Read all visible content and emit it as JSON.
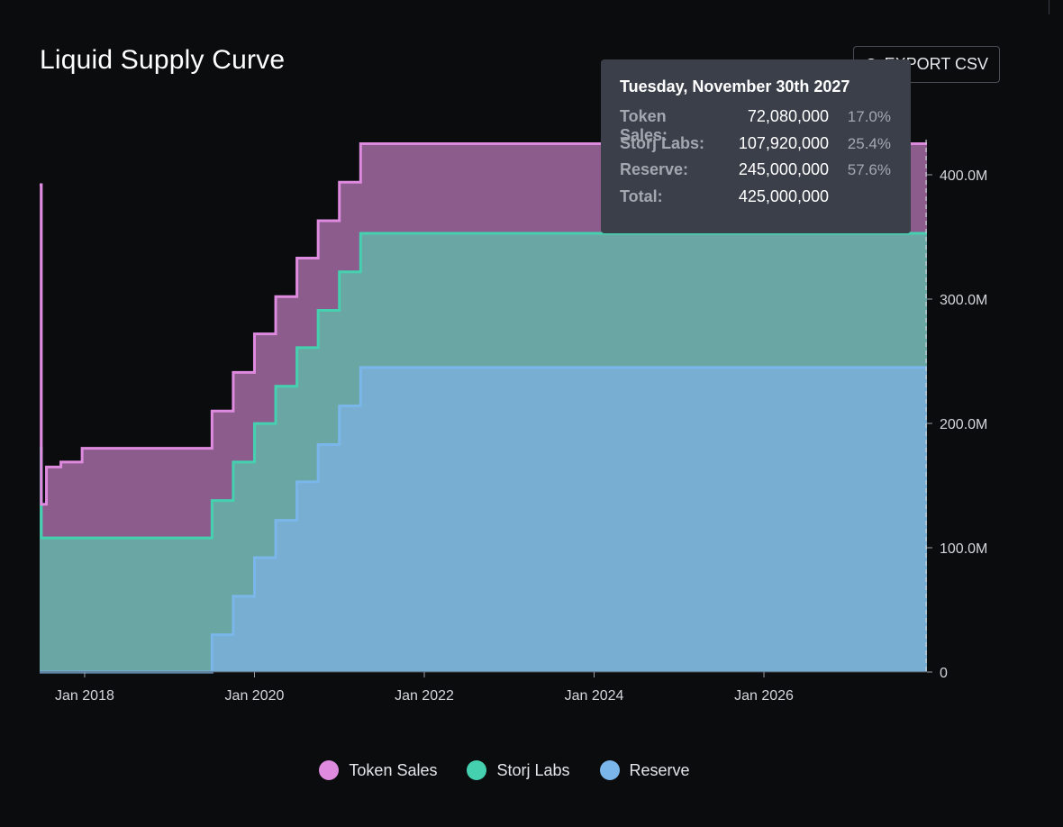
{
  "header": {
    "title": "Liquid Supply Curve",
    "export_label": "EXPORT CSV"
  },
  "tooltip": {
    "date": "Tuesday, November 30th 2027",
    "rows": [
      {
        "label": "Token Sales:",
        "value": "72,080,000",
        "pct": "17.0%"
      },
      {
        "label": "Storj Labs:",
        "value": "107,920,000",
        "pct": "25.4%"
      },
      {
        "label": "Reserve:",
        "value": "245,000,000",
        "pct": "57.6%"
      },
      {
        "label": "Total:",
        "value": "425,000,000",
        "pct": ""
      }
    ]
  },
  "legend": [
    {
      "label": "Token Sales",
      "color": "#de8adf"
    },
    {
      "label": "Storj Labs",
      "color": "#45d1b0"
    },
    {
      "label": "Reserve",
      "color": "#7ab6ea"
    }
  ],
  "chart_data": {
    "type": "area",
    "stacked": true,
    "step": true,
    "title": "Liquid Supply Curve",
    "xlabel": "",
    "ylabel": "",
    "x_domain": [
      2017.47,
      2027.92
    ],
    "ylim": [
      0,
      425000000
    ],
    "y_axis_side": "right",
    "y_ticks": [
      {
        "value": 0,
        "label": "0"
      },
      {
        "value": 100000000,
        "label": "100.0M"
      },
      {
        "value": 200000000,
        "label": "200.0M"
      },
      {
        "value": 300000000,
        "label": "300.0M"
      },
      {
        "value": 400000000,
        "label": "400.0M"
      }
    ],
    "x_ticks": [
      {
        "value": 2018.0,
        "label": "Jan 2018"
      },
      {
        "value": 2020.0,
        "label": "Jan 2020"
      },
      {
        "value": 2022.0,
        "label": "Jan 2022"
      },
      {
        "value": 2024.0,
        "label": "Jan 2024"
      },
      {
        "value": 2026.0,
        "label": "Jan 2026"
      }
    ],
    "hover_x": 2027.91,
    "series": [
      {
        "name": "Reserve",
        "color": "#7ab6ea",
        "fill": "#77aed1",
        "points": [
          [
            2017.47,
            0
          ],
          [
            2019.5,
            0
          ],
          [
            2019.5,
            30000000
          ],
          [
            2019.75,
            30000000
          ],
          [
            2019.75,
            61000000
          ],
          [
            2020.0,
            61000000
          ],
          [
            2020.0,
            92000000
          ],
          [
            2020.25,
            92000000
          ],
          [
            2020.25,
            122000000
          ],
          [
            2020.5,
            122000000
          ],
          [
            2020.5,
            153000000
          ],
          [
            2020.75,
            153000000
          ],
          [
            2020.75,
            183000000
          ],
          [
            2021.0,
            183000000
          ],
          [
            2021.0,
            214000000
          ],
          [
            2021.25,
            214000000
          ],
          [
            2021.25,
            245000000
          ],
          [
            2027.92,
            245000000
          ]
        ]
      },
      {
        "name": "Storj Labs",
        "color": "#45d1b0",
        "fill": "#6aa6a4",
        "points": [
          [
            2017.47,
            180000000
          ],
          [
            2017.49,
            107920000
          ],
          [
            2019.5,
            107920000
          ],
          [
            2027.92,
            107920000
          ]
        ]
      },
      {
        "name": "Token Sales",
        "color": "#de8adf",
        "fill": "#8b5c8c",
        "points": [
          [
            2017.47,
            212000000
          ],
          [
            2017.49,
            27000000
          ],
          [
            2017.55,
            27000000
          ],
          [
            2017.55,
            57000000
          ],
          [
            2017.72,
            57000000
          ],
          [
            2017.72,
            61000000
          ],
          [
            2017.97,
            61000000
          ],
          [
            2017.97,
            72080000
          ],
          [
            2027.92,
            72080000
          ]
        ]
      }
    ]
  }
}
